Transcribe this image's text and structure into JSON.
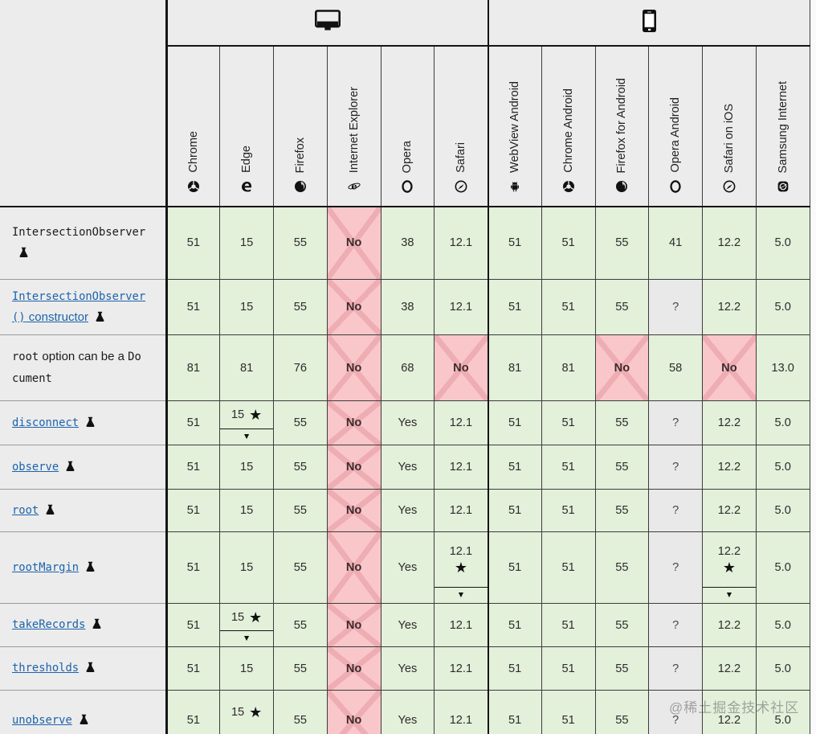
{
  "watermark": "@稀土掘金技术社区",
  "colors": {
    "header_bg": "#ececec",
    "supported": "#e3f0da",
    "unsupported": "#f9c7ca",
    "cross": "#eeadb2",
    "unknown": "#e9e9e9",
    "link": "#1c63ad"
  },
  "table": {
    "groups": [
      {
        "name": "desktop",
        "icon": "desktop-icon",
        "span": 6
      },
      {
        "name": "mobile",
        "icon": "mobile-icon",
        "span": 6
      }
    ],
    "columns": [
      {
        "label": "Chrome",
        "icon": "chrome-icon"
      },
      {
        "label": "Edge",
        "icon": "edge-icon"
      },
      {
        "label": "Firefox",
        "icon": "firefox-icon"
      },
      {
        "label": "Internet Explorer",
        "icon": "internet-explorer-icon"
      },
      {
        "label": "Opera",
        "icon": "opera-icon"
      },
      {
        "label": "Safari",
        "icon": "safari-icon"
      },
      {
        "label": "WebView Android",
        "icon": "android-icon"
      },
      {
        "label": "Chrome Android",
        "icon": "chrome-icon"
      },
      {
        "label": "Firefox for Android",
        "icon": "firefox-icon"
      },
      {
        "label": "Opera Android",
        "icon": "opera-icon"
      },
      {
        "label": "Safari on iOS",
        "icon": "safari-icon"
      },
      {
        "label": "Samsung Internet",
        "icon": "samsung-internet-icon"
      }
    ],
    "rows": [
      {
        "id": "intersectionobserver",
        "link": false,
        "experimental": true,
        "label": [
          {
            "text": "IntersectionObserver",
            "code": true
          }
        ],
        "cells": [
          {
            "v": "51",
            "s": "y"
          },
          {
            "v": "15",
            "s": "y"
          },
          {
            "v": "55",
            "s": "y"
          },
          {
            "v": "No",
            "s": "n"
          },
          {
            "v": "38",
            "s": "y"
          },
          {
            "v": "12.1",
            "s": "y"
          },
          {
            "v": "51",
            "s": "y"
          },
          {
            "v": "51",
            "s": "y"
          },
          {
            "v": "55",
            "s": "y"
          },
          {
            "v": "41",
            "s": "y"
          },
          {
            "v": "12.2",
            "s": "y"
          },
          {
            "v": "5.0",
            "s": "y"
          }
        ]
      },
      {
        "id": "intersectionobserver-constructor",
        "link": true,
        "experimental": true,
        "label": [
          {
            "text": "IntersectionObserver()",
            "code": true
          },
          {
            "text": " constructor",
            "code": false
          }
        ],
        "cells": [
          {
            "v": "51",
            "s": "y"
          },
          {
            "v": "15",
            "s": "y"
          },
          {
            "v": "55",
            "s": "y"
          },
          {
            "v": "No",
            "s": "n"
          },
          {
            "v": "38",
            "s": "y"
          },
          {
            "v": "12.1",
            "s": "y"
          },
          {
            "v": "51",
            "s": "y"
          },
          {
            "v": "51",
            "s": "y"
          },
          {
            "v": "55",
            "s": "y"
          },
          {
            "v": "?",
            "s": "u"
          },
          {
            "v": "12.2",
            "s": "y"
          },
          {
            "v": "5.0",
            "s": "y"
          }
        ]
      },
      {
        "id": "root-option-document",
        "link": false,
        "experimental": false,
        "label": [
          {
            "text": "root",
            "code": true
          },
          {
            "text": " option can be a ",
            "code": false
          },
          {
            "text": "Document",
            "code": true
          }
        ],
        "cells": [
          {
            "v": "81",
            "s": "y"
          },
          {
            "v": "81",
            "s": "y"
          },
          {
            "v": "76",
            "s": "y"
          },
          {
            "v": "No",
            "s": "n"
          },
          {
            "v": "68",
            "s": "y"
          },
          {
            "v": "No",
            "s": "n"
          },
          {
            "v": "81",
            "s": "y"
          },
          {
            "v": "81",
            "s": "y"
          },
          {
            "v": "No",
            "s": "n"
          },
          {
            "v": "58",
            "s": "y"
          },
          {
            "v": "No",
            "s": "n"
          },
          {
            "v": "13.0",
            "s": "y"
          }
        ]
      },
      {
        "id": "disconnect",
        "link": true,
        "experimental": true,
        "label": [
          {
            "text": "disconnect",
            "code": true
          }
        ],
        "cells": [
          {
            "v": "51",
            "s": "y"
          },
          {
            "v": "15",
            "s": "y",
            "note": true
          },
          {
            "v": "55",
            "s": "y"
          },
          {
            "v": "No",
            "s": "n"
          },
          {
            "v": "Yes",
            "s": "y"
          },
          {
            "v": "12.1",
            "s": "y"
          },
          {
            "v": "51",
            "s": "y"
          },
          {
            "v": "51",
            "s": "y"
          },
          {
            "v": "55",
            "s": "y"
          },
          {
            "v": "?",
            "s": "u"
          },
          {
            "v": "12.2",
            "s": "y"
          },
          {
            "v": "5.0",
            "s": "y"
          }
        ]
      },
      {
        "id": "observe",
        "link": true,
        "experimental": true,
        "label": [
          {
            "text": "observe",
            "code": true
          }
        ],
        "cells": [
          {
            "v": "51",
            "s": "y"
          },
          {
            "v": "15",
            "s": "y"
          },
          {
            "v": "55",
            "s": "y"
          },
          {
            "v": "No",
            "s": "n"
          },
          {
            "v": "Yes",
            "s": "y"
          },
          {
            "v": "12.1",
            "s": "y"
          },
          {
            "v": "51",
            "s": "y"
          },
          {
            "v": "51",
            "s": "y"
          },
          {
            "v": "55",
            "s": "y"
          },
          {
            "v": "?",
            "s": "u"
          },
          {
            "v": "12.2",
            "s": "y"
          },
          {
            "v": "5.0",
            "s": "y"
          }
        ]
      },
      {
        "id": "root",
        "link": true,
        "experimental": true,
        "label": [
          {
            "text": "root",
            "code": true
          }
        ],
        "cells": [
          {
            "v": "51",
            "s": "y"
          },
          {
            "v": "15",
            "s": "y"
          },
          {
            "v": "55",
            "s": "y"
          },
          {
            "v": "No",
            "s": "n"
          },
          {
            "v": "Yes",
            "s": "y"
          },
          {
            "v": "12.1",
            "s": "y"
          },
          {
            "v": "51",
            "s": "y"
          },
          {
            "v": "51",
            "s": "y"
          },
          {
            "v": "55",
            "s": "y"
          },
          {
            "v": "?",
            "s": "u"
          },
          {
            "v": "12.2",
            "s": "y"
          },
          {
            "v": "5.0",
            "s": "y"
          }
        ]
      },
      {
        "id": "rootmargin",
        "link": true,
        "experimental": true,
        "label": [
          {
            "text": "rootMargin",
            "code": true
          }
        ],
        "cells": [
          {
            "v": "51",
            "s": "y"
          },
          {
            "v": "15",
            "s": "y"
          },
          {
            "v": "55",
            "s": "y"
          },
          {
            "v": "No",
            "s": "n"
          },
          {
            "v": "Yes",
            "s": "y"
          },
          {
            "v": "12.1",
            "s": "y",
            "note": true,
            "stack": true
          },
          {
            "v": "51",
            "s": "y"
          },
          {
            "v": "51",
            "s": "y"
          },
          {
            "v": "55",
            "s": "y"
          },
          {
            "v": "?",
            "s": "u"
          },
          {
            "v": "12.2",
            "s": "y",
            "note": true,
            "stack": true
          },
          {
            "v": "5.0",
            "s": "y"
          }
        ]
      },
      {
        "id": "takerecords",
        "link": true,
        "experimental": true,
        "label": [
          {
            "text": "takeRecords",
            "code": true
          }
        ],
        "cells": [
          {
            "v": "51",
            "s": "y"
          },
          {
            "v": "15",
            "s": "y",
            "note": true
          },
          {
            "v": "55",
            "s": "y"
          },
          {
            "v": "No",
            "s": "n"
          },
          {
            "v": "Yes",
            "s": "y"
          },
          {
            "v": "12.1",
            "s": "y"
          },
          {
            "v": "51",
            "s": "y"
          },
          {
            "v": "51",
            "s": "y"
          },
          {
            "v": "55",
            "s": "y"
          },
          {
            "v": "?",
            "s": "u"
          },
          {
            "v": "12.2",
            "s": "y"
          },
          {
            "v": "5.0",
            "s": "y"
          }
        ]
      },
      {
        "id": "thresholds",
        "link": true,
        "experimental": true,
        "label": [
          {
            "text": "thresholds",
            "code": true
          }
        ],
        "cells": [
          {
            "v": "51",
            "s": "y"
          },
          {
            "v": "15",
            "s": "y"
          },
          {
            "v": "55",
            "s": "y"
          },
          {
            "v": "No",
            "s": "n"
          },
          {
            "v": "Yes",
            "s": "y"
          },
          {
            "v": "12.1",
            "s": "y"
          },
          {
            "v": "51",
            "s": "y"
          },
          {
            "v": "51",
            "s": "y"
          },
          {
            "v": "55",
            "s": "y"
          },
          {
            "v": "?",
            "s": "u"
          },
          {
            "v": "12.2",
            "s": "y"
          },
          {
            "v": "5.0",
            "s": "y"
          }
        ]
      },
      {
        "id": "unobserve",
        "link": true,
        "experimental": true,
        "label": [
          {
            "text": "unobserve",
            "code": true
          }
        ],
        "cells": [
          {
            "v": "51",
            "s": "y"
          },
          {
            "v": "15",
            "s": "y",
            "note": true
          },
          {
            "v": "55",
            "s": "y"
          },
          {
            "v": "No",
            "s": "n"
          },
          {
            "v": "Yes",
            "s": "y"
          },
          {
            "v": "12.1",
            "s": "y"
          },
          {
            "v": "51",
            "s": "y"
          },
          {
            "v": "51",
            "s": "y"
          },
          {
            "v": "55",
            "s": "y"
          },
          {
            "v": "?",
            "s": "u"
          },
          {
            "v": "12.2",
            "s": "y"
          },
          {
            "v": "5.0",
            "s": "y"
          }
        ]
      }
    ]
  }
}
